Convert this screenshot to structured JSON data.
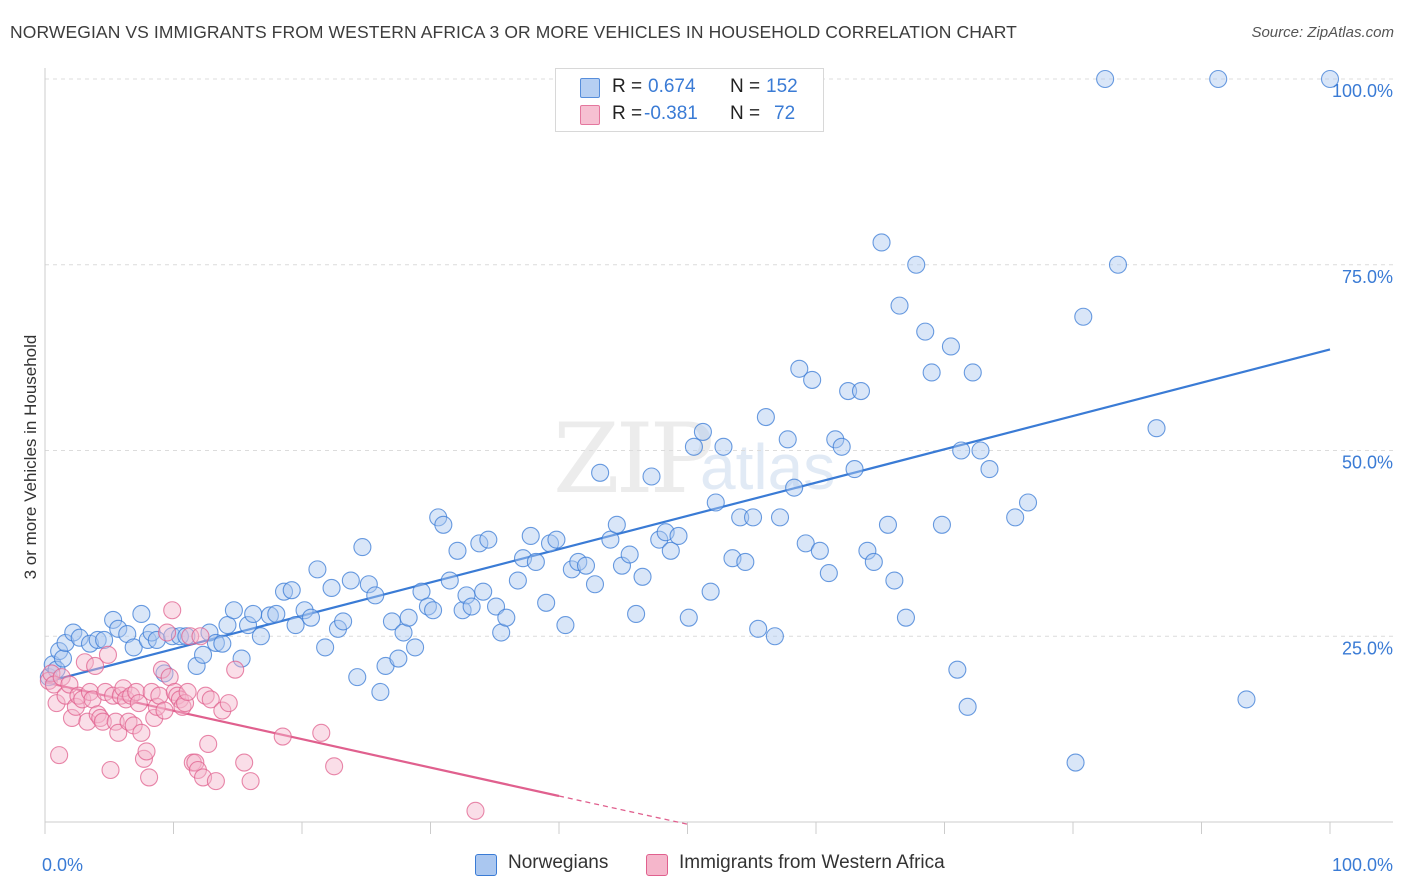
{
  "header": {
    "title": "NORWEGIAN VS IMMIGRANTS FROM WESTERN AFRICA 3 OR MORE VEHICLES IN HOUSEHOLD CORRELATION CHART",
    "source": "Source: ZipAtlas.com"
  },
  "watermark": {
    "zip": "ZIP",
    "atlas": "atlas"
  },
  "legend": {
    "rows": [
      {
        "r_label": "R =",
        "r_value": "0.674",
        "n_label": "N =",
        "n_value": "152",
        "color": "#aac7f0"
      },
      {
        "r_label": "R =",
        "r_value": "-0.381",
        "n_label": "N =",
        "n_value": "72",
        "color": "#f5b6cb"
      }
    ]
  },
  "bottom_legend": {
    "items": [
      {
        "label": "Norwegians",
        "color": "#aac7f0"
      },
      {
        "label": "Immigrants from Western Africa",
        "color": "#f5b6cb"
      }
    ]
  },
  "chart_data": {
    "type": "scatter",
    "title": "NORWEGIAN VS IMMIGRANTS FROM WESTERN AFRICA 3 OR MORE VEHICLES IN HOUSEHOLD CORRELATION CHART",
    "xlabel": "",
    "ylabel": "3 or more Vehicles in Household",
    "xlim": [
      0,
      100
    ],
    "ylim": [
      0,
      100
    ],
    "x_tick_labels": [
      {
        "value": 0,
        "label": "0.0%"
      },
      {
        "value": 100,
        "label": "100.0%"
      }
    ],
    "y_tick_labels": [
      {
        "value": 25,
        "label": "25.0%"
      },
      {
        "value": 50,
        "label": "50.0%"
      },
      {
        "value": 75,
        "label": "75.0%"
      },
      {
        "value": 100,
        "label": "100.0%"
      }
    ],
    "grid": true,
    "legend_position": "top-center",
    "series": [
      {
        "name": "Norwegians",
        "color": "#3a7bd5",
        "fill": "#aac7f0",
        "r": 0.674,
        "n": 152,
        "trend": {
          "x": [
            0,
            100
          ],
          "y": [
            18.8,
            63.6
          ]
        },
        "points": [
          [
            0.3,
            19.5
          ],
          [
            0.6,
            21.2
          ],
          [
            0.9,
            20.5
          ],
          [
            1.1,
            23.0
          ],
          [
            1.4,
            22.0
          ],
          [
            1.6,
            24.1
          ],
          [
            2.2,
            25.5
          ],
          [
            2.7,
            24.8
          ],
          [
            3.5,
            24.0
          ],
          [
            4.1,
            24.5
          ],
          [
            4.6,
            24.5
          ],
          [
            5.3,
            27.2
          ],
          [
            5.7,
            26.0
          ],
          [
            6.4,
            25.3
          ],
          [
            6.9,
            23.5
          ],
          [
            7.5,
            28.0
          ],
          [
            8.0,
            24.5
          ],
          [
            8.3,
            25.5
          ],
          [
            8.7,
            24.5
          ],
          [
            9.3,
            20.0
          ],
          [
            9.9,
            25.0
          ],
          [
            10.5,
            25.0
          ],
          [
            11.0,
            25.0
          ],
          [
            11.8,
            21.0
          ],
          [
            12.3,
            22.5
          ],
          [
            12.8,
            25.5
          ],
          [
            13.3,
            24.1
          ],
          [
            13.8,
            24.0
          ],
          [
            14.2,
            26.5
          ],
          [
            14.7,
            28.5
          ],
          [
            15.3,
            22.0
          ],
          [
            15.8,
            26.5
          ],
          [
            16.2,
            28.0
          ],
          [
            16.8,
            25.0
          ],
          [
            17.5,
            27.8
          ],
          [
            18.0,
            28.0
          ],
          [
            18.6,
            31.0
          ],
          [
            19.2,
            31.2
          ],
          [
            19.5,
            26.5
          ],
          [
            20.2,
            28.5
          ],
          [
            20.7,
            27.5
          ],
          [
            21.2,
            34.0
          ],
          [
            21.8,
            23.5
          ],
          [
            22.3,
            31.5
          ],
          [
            22.8,
            26.0
          ],
          [
            23.2,
            27.0
          ],
          [
            23.8,
            32.5
          ],
          [
            24.3,
            19.5
          ],
          [
            24.7,
            37.0
          ],
          [
            25.2,
            32.0
          ],
          [
            25.7,
            30.5
          ],
          [
            26.1,
            17.5
          ],
          [
            26.5,
            21.0
          ],
          [
            27.0,
            27.0
          ],
          [
            27.5,
            22.0
          ],
          [
            27.9,
            25.5
          ],
          [
            28.3,
            27.5
          ],
          [
            28.8,
            23.5
          ],
          [
            29.3,
            31.0
          ],
          [
            29.8,
            29.0
          ],
          [
            30.2,
            28.5
          ],
          [
            30.6,
            41.0
          ],
          [
            31.0,
            40.0
          ],
          [
            31.5,
            32.5
          ],
          [
            32.1,
            36.5
          ],
          [
            32.5,
            28.5
          ],
          [
            32.8,
            30.5
          ],
          [
            33.2,
            29.0
          ],
          [
            33.8,
            37.5
          ],
          [
            34.1,
            31.0
          ],
          [
            34.5,
            38.0
          ],
          [
            35.1,
            29.0
          ],
          [
            35.5,
            25.5
          ],
          [
            35.9,
            27.5
          ],
          [
            36.8,
            32.5
          ],
          [
            37.2,
            35.5
          ],
          [
            37.8,
            38.5
          ],
          [
            38.2,
            35.0
          ],
          [
            39.0,
            29.5
          ],
          [
            39.3,
            37.5
          ],
          [
            39.8,
            38.0
          ],
          [
            40.5,
            26.5
          ],
          [
            41.0,
            34.0
          ],
          [
            41.5,
            35.0
          ],
          [
            42.1,
            34.5
          ],
          [
            42.8,
            32.0
          ],
          [
            43.2,
            47.0
          ],
          [
            44.0,
            38.0
          ],
          [
            44.5,
            40.0
          ],
          [
            44.9,
            34.5
          ],
          [
            45.5,
            36.0
          ],
          [
            46.0,
            28.0
          ],
          [
            46.5,
            33.0
          ],
          [
            47.2,
            46.5
          ],
          [
            47.8,
            38.0
          ],
          [
            48.3,
            39.0
          ],
          [
            48.7,
            36.5
          ],
          [
            49.3,
            38.5
          ],
          [
            50.1,
            27.5
          ],
          [
            50.5,
            50.5
          ],
          [
            51.2,
            52.5
          ],
          [
            51.8,
            31.0
          ],
          [
            52.2,
            43.0
          ],
          [
            52.8,
            50.5
          ],
          [
            53.5,
            35.5
          ],
          [
            54.1,
            41.0
          ],
          [
            54.5,
            35.0
          ],
          [
            55.1,
            41.0
          ],
          [
            55.5,
            26.0
          ],
          [
            56.1,
            54.5
          ],
          [
            56.8,
            25.0
          ],
          [
            57.2,
            41.0
          ],
          [
            57.8,
            51.5
          ],
          [
            58.3,
            45.0
          ],
          [
            58.7,
            61.0
          ],
          [
            59.2,
            37.5
          ],
          [
            59.7,
            59.5
          ],
          [
            60.3,
            36.5
          ],
          [
            61.0,
            33.5
          ],
          [
            61.5,
            51.5
          ],
          [
            62.0,
            50.5
          ],
          [
            62.5,
            58.0
          ],
          [
            63.0,
            47.5
          ],
          [
            63.5,
            58.0
          ],
          [
            64.0,
            36.5
          ],
          [
            64.5,
            35.0
          ],
          [
            65.1,
            78.0
          ],
          [
            65.6,
            40.0
          ],
          [
            66.1,
            32.5
          ],
          [
            66.5,
            69.5
          ],
          [
            67.0,
            27.5
          ],
          [
            67.8,
            75.0
          ],
          [
            68.5,
            66.0
          ],
          [
            69.0,
            60.5
          ],
          [
            69.8,
            40.0
          ],
          [
            70.5,
            64.0
          ],
          [
            71.0,
            20.5
          ],
          [
            71.3,
            50.0
          ],
          [
            71.8,
            15.5
          ],
          [
            72.2,
            60.5
          ],
          [
            72.8,
            50.0
          ],
          [
            73.5,
            47.5
          ],
          [
            75.5,
            41.0
          ],
          [
            76.5,
            43.0
          ],
          [
            80.2,
            8.0
          ],
          [
            80.8,
            68.0
          ],
          [
            82.5,
            100.0
          ],
          [
            83.5,
            75.0
          ],
          [
            86.5,
            53.0
          ],
          [
            91.3,
            100.0
          ],
          [
            93.5,
            16.5
          ],
          [
            100.0,
            100.0
          ]
        ]
      },
      {
        "name": "Immigrants from Western Africa",
        "color": "#e0608e",
        "fill": "#f5b6cb",
        "r": -0.381,
        "n": 72,
        "trend": {
          "x": [
            0,
            40
          ],
          "y": [
            18.8,
            3.5
          ]
        },
        "trend_dashed": {
          "x": [
            40,
            50
          ],
          "y": [
            3.5,
            -0.3
          ]
        },
        "points": [
          [
            0.3,
            19.0
          ],
          [
            0.5,
            20.0
          ],
          [
            0.7,
            18.5
          ],
          [
            0.9,
            16.0
          ],
          [
            1.1,
            9.0
          ],
          [
            1.3,
            19.5
          ],
          [
            1.6,
            17.0
          ],
          [
            1.9,
            18.5
          ],
          [
            2.1,
            14.0
          ],
          [
            2.4,
            15.5
          ],
          [
            2.6,
            17.0
          ],
          [
            2.9,
            16.5
          ],
          [
            3.1,
            21.5
          ],
          [
            3.3,
            13.5
          ],
          [
            3.5,
            17.5
          ],
          [
            3.7,
            16.5
          ],
          [
            3.9,
            21.0
          ],
          [
            4.1,
            14.5
          ],
          [
            4.3,
            14.0
          ],
          [
            4.5,
            13.5
          ],
          [
            4.7,
            17.5
          ],
          [
            4.9,
            22.5
          ],
          [
            5.1,
            7.0
          ],
          [
            5.3,
            17.0
          ],
          [
            5.5,
            13.5
          ],
          [
            5.7,
            12.0
          ],
          [
            5.9,
            17.0
          ],
          [
            6.1,
            18.0
          ],
          [
            6.3,
            16.5
          ],
          [
            6.5,
            13.5
          ],
          [
            6.7,
            17.0
          ],
          [
            6.9,
            13.0
          ],
          [
            7.1,
            17.5
          ],
          [
            7.3,
            16.0
          ],
          [
            7.5,
            12.0
          ],
          [
            7.7,
            8.5
          ],
          [
            7.9,
            9.5
          ],
          [
            8.1,
            6.0
          ],
          [
            8.3,
            17.5
          ],
          [
            8.5,
            14.0
          ],
          [
            8.7,
            15.5
          ],
          [
            8.9,
            17.0
          ],
          [
            9.1,
            20.5
          ],
          [
            9.3,
            15.0
          ],
          [
            9.5,
            25.5
          ],
          [
            9.7,
            19.5
          ],
          [
            9.9,
            28.5
          ],
          [
            10.1,
            17.5
          ],
          [
            10.3,
            17.0
          ],
          [
            10.5,
            16.5
          ],
          [
            10.7,
            15.5
          ],
          [
            10.9,
            16.0
          ],
          [
            11.1,
            17.5
          ],
          [
            11.3,
            25.0
          ],
          [
            11.5,
            8.0
          ],
          [
            11.7,
            8.0
          ],
          [
            11.9,
            7.0
          ],
          [
            12.1,
            25.0
          ],
          [
            12.3,
            6.0
          ],
          [
            12.5,
            17.0
          ],
          [
            12.7,
            10.5
          ],
          [
            12.9,
            16.5
          ],
          [
            13.3,
            5.5
          ],
          [
            13.8,
            15.0
          ],
          [
            14.3,
            16.0
          ],
          [
            14.8,
            20.5
          ],
          [
            15.5,
            8.0
          ],
          [
            16.0,
            5.5
          ],
          [
            18.5,
            11.5
          ],
          [
            21.5,
            12.0
          ],
          [
            22.5,
            7.5
          ],
          [
            33.5,
            1.5
          ]
        ]
      }
    ]
  }
}
